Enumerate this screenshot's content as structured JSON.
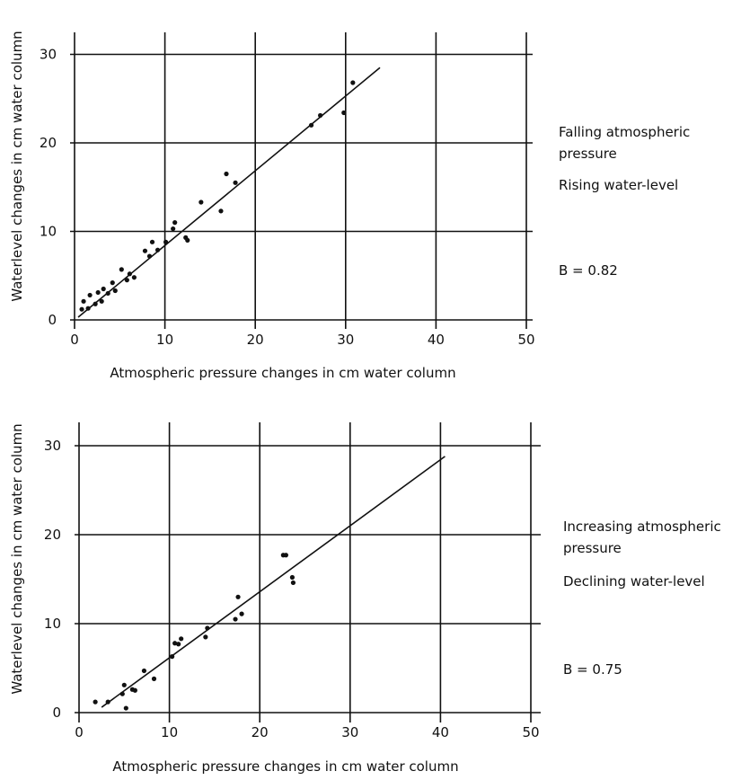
{
  "chart_data": [
    {
      "type": "scatter",
      "xlabel": "Atmospheric pressure changes in cm water column",
      "ylabel": "Waterlevel changes in cm water column",
      "xlim": [
        0,
        50
      ],
      "ylim": [
        0,
        30
      ],
      "x_ticks": [
        "0",
        "10",
        "20",
        "30",
        "40",
        "50"
      ],
      "y_ticks": [
        "0",
        "10",
        "20",
        "30"
      ],
      "grid": true,
      "annotations": [
        "Falling atmospheric",
        "pressure",
        "Rising water-level",
        "B = 0.82"
      ],
      "fit_line": {
        "x": [
          0.4,
          33.8
        ],
        "y": [
          0.3,
          28.5
        ]
      },
      "points": {
        "x": [
          0.8,
          1.0,
          1.5,
          1.7,
          2.3,
          2.6,
          3.0,
          3.2,
          3.7,
          4.2,
          4.5,
          5.2,
          5.8,
          6.1,
          6.6,
          7.8,
          8.3,
          8.6,
          9.2,
          10.1,
          10.9,
          11.1,
          12.3,
          12.5,
          14.0,
          16.2,
          16.8,
          17.8,
          26.2,
          27.2,
          29.8,
          30.8
        ],
        "y": [
          1.2,
          2.1,
          1.3,
          2.8,
          1.8,
          3.1,
          2.1,
          3.5,
          3.0,
          4.2,
          3.3,
          5.7,
          4.5,
          5.2,
          4.8,
          7.8,
          7.2,
          8.8,
          7.9,
          8.8,
          10.3,
          11.0,
          9.3,
          9.0,
          13.3,
          12.3,
          16.5,
          15.5,
          22.0,
          23.1,
          23.4,
          26.8
        ]
      }
    },
    {
      "type": "scatter",
      "xlabel": "Atmospheric pressure changes in cm water column",
      "ylabel": "Waterlevel changes in cm water column",
      "xlim": [
        0,
        50
      ],
      "ylim": [
        0,
        30
      ],
      "x_ticks": [
        "0",
        "10",
        "20",
        "30",
        "40",
        "50"
      ],
      "y_ticks": [
        "0",
        "10",
        "20",
        "30"
      ],
      "grid": true,
      "annotations": [
        "Increasing atmospheric",
        "pressure",
        "Declining water-level",
        "B = 0.75"
      ],
      "fit_line": {
        "x": [
          2.5,
          40.5
        ],
        "y": [
          0.6,
          28.8
        ]
      },
      "points": {
        "x": [
          1.8,
          3.2,
          4.8,
          5.0,
          5.2,
          5.9,
          6.2,
          7.2,
          8.3,
          10.3,
          10.6,
          11.0,
          11.3,
          14.0,
          14.2,
          17.3,
          17.6,
          18.0,
          22.6,
          22.9,
          23.6,
          23.7
        ],
        "y": [
          1.2,
          1.2,
          2.1,
          3.1,
          0.5,
          2.6,
          2.5,
          4.7,
          3.8,
          6.3,
          7.8,
          7.7,
          8.3,
          8.5,
          9.5,
          10.5,
          13.0,
          11.1,
          17.7,
          17.7,
          15.2,
          14.6
        ]
      }
    }
  ]
}
